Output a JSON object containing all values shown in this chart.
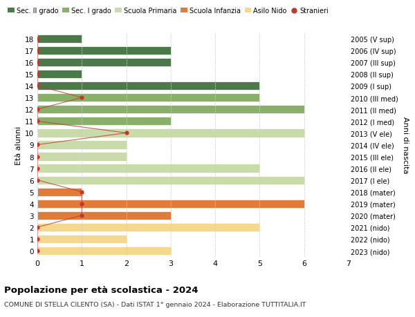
{
  "ages": [
    0,
    1,
    2,
    3,
    4,
    5,
    6,
    7,
    8,
    9,
    10,
    11,
    12,
    13,
    14,
    15,
    16,
    17,
    18
  ],
  "right_labels": [
    "2023 (nido)",
    "2022 (nido)",
    "2021 (nido)",
    "2020 (mater)",
    "2019 (mater)",
    "2018 (mater)",
    "2017 (I ele)",
    "2016 (II ele)",
    "2015 (III ele)",
    "2014 (IV ele)",
    "2013 (V ele)",
    "2012 (I med)",
    "2011 (II med)",
    "2010 (III med)",
    "2009 (I sup)",
    "2008 (II sup)",
    "2007 (III sup)",
    "2006 (IV sup)",
    "2005 (V sup)"
  ],
  "bar_values": [
    3,
    2,
    5,
    3,
    6,
    1,
    6,
    5,
    2,
    2,
    6,
    3,
    6,
    5,
    5,
    1,
    3,
    3,
    1
  ],
  "bar_colors": [
    "#f5d78e",
    "#f5d78e",
    "#f5d78e",
    "#e07b39",
    "#e07b39",
    "#e07b39",
    "#c8dba8",
    "#c8dba8",
    "#c8dba8",
    "#c8dba8",
    "#c8dba8",
    "#8aaf6a",
    "#8aaf6a",
    "#8aaf6a",
    "#4a7a4a",
    "#4a7a4a",
    "#4a7a4a",
    "#4a7a4a",
    "#4a7a4a"
  ],
  "stranieri_values": [
    0,
    0,
    0,
    1,
    1,
    1,
    0,
    0,
    0,
    0,
    2,
    0,
    0,
    1,
    0,
    0,
    0,
    0,
    0
  ],
  "legend_labels": [
    "Sec. II grado",
    "Sec. I grado",
    "Scuola Primaria",
    "Scuola Infanzia",
    "Asilo Nido",
    "Stranieri"
  ],
  "legend_colors": [
    "#4a7a4a",
    "#8aaf6a",
    "#c8dba8",
    "#e07b39",
    "#f5d78e",
    "#c0392b"
  ],
  "title": "Popolazione per età scolastica - 2024",
  "subtitle": "COMUNE DI STELLA CILENTO (SA) - Dati ISTAT 1° gennaio 2024 - Elaborazione TUTTITALIA.IT",
  "ylabel_left": "Età alunni",
  "ylabel_right": "Anni di nascita",
  "xlim": [
    0,
    7
  ],
  "background_color": "#ffffff",
  "grid_color": "#cccccc"
}
